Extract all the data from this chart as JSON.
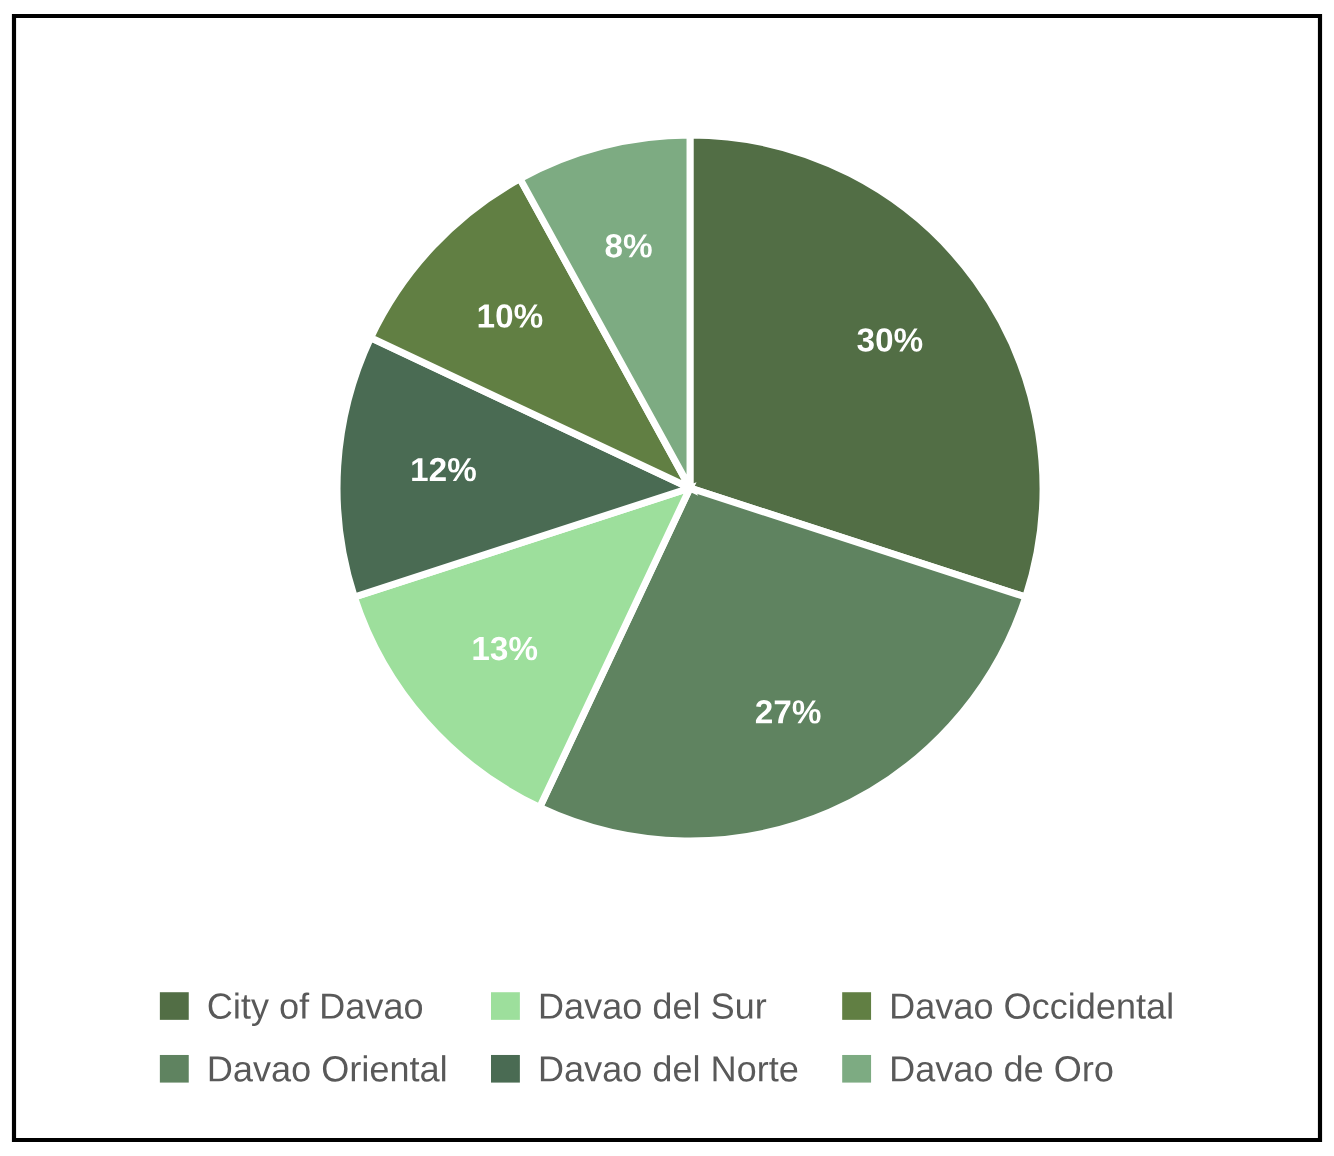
{
  "chart_data": {
    "type": "pie",
    "categories": [
      "City of Davao",
      "Davao Oriental",
      "Davao del Sur",
      "Davao del Norte",
      "Davao Occidental",
      "Davao de Oro"
    ],
    "values": [
      30,
      27,
      13,
      12,
      10,
      8
    ],
    "colors": [
      "#526e45",
      "#5f8360",
      "#9ddf9c",
      "#4a6b53",
      "#617f43",
      "#7dab82"
    ],
    "value_labels": [
      "30%",
      "27%",
      "13%",
      "12%",
      "10%",
      "8%"
    ],
    "legend": "bottom"
  }
}
